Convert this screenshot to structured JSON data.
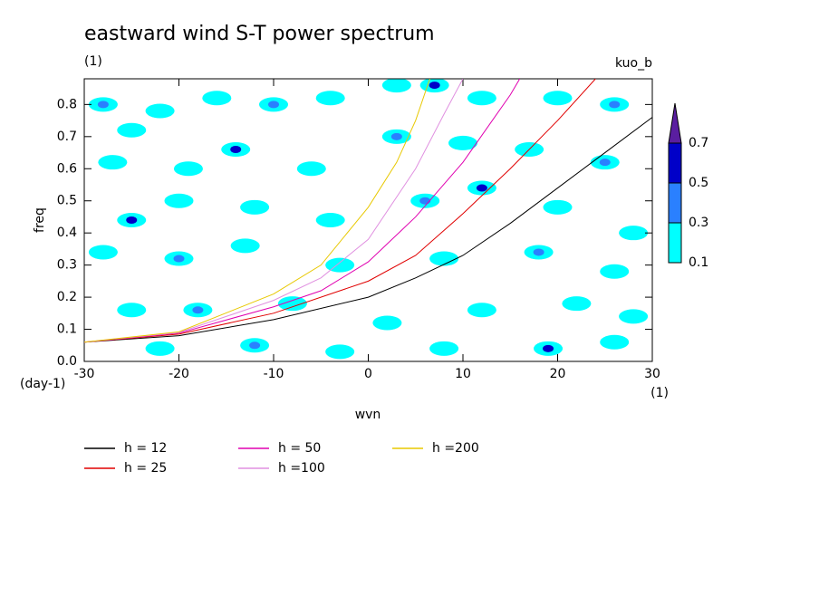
{
  "chart_data": {
    "type": "line",
    "title": "eastward wind S-T power spectrum",
    "subtitle": "(1)",
    "annotation": "kuo_b",
    "x_label": "wvn",
    "x_unit": "(1)",
    "y_label": "freq",
    "y_unit": "(day-1)",
    "xlim": [
      -30,
      30
    ],
    "ylim": [
      0,
      0.88
    ],
    "xticks": [
      -30,
      -20,
      -10,
      0,
      10,
      20,
      30
    ],
    "yticks": [
      {
        "value": 0,
        "label": "0.0"
      },
      0.1,
      0.2,
      0.3,
      0.4,
      0.5,
      0.6,
      0.7,
      0.8
    ],
    "series": [
      {
        "name": "h = 12",
        "color": "#000000",
        "x": [
          -30,
          -20,
          -10,
          0,
          5,
          10,
          15,
          20,
          25,
          30
        ],
        "values": [
          0.06,
          0.08,
          0.13,
          0.2,
          0.26,
          0.33,
          0.43,
          0.54,
          0.65,
          0.76
        ]
      },
      {
        "name": "h = 25",
        "color": "#e00000",
        "x": [
          -30,
          -20,
          -10,
          0,
          5,
          10,
          15,
          20,
          24
        ],
        "values": [
          0.06,
          0.085,
          0.15,
          0.25,
          0.33,
          0.46,
          0.6,
          0.75,
          0.88
        ]
      },
      {
        "name": "h = 50",
        "color": "#e000b0",
        "x": [
          -30,
          -20,
          -10,
          -5,
          0,
          5,
          10,
          15,
          16
        ],
        "values": [
          0.06,
          0.088,
          0.17,
          0.22,
          0.31,
          0.45,
          0.62,
          0.83,
          0.88
        ]
      },
      {
        "name": "h =100",
        "color": "#e090e0",
        "x": [
          -30,
          -20,
          -10,
          -5,
          0,
          5,
          8,
          10
        ],
        "values": [
          0.06,
          0.09,
          0.19,
          0.26,
          0.38,
          0.6,
          0.77,
          0.88
        ]
      },
      {
        "name": "h =200",
        "color": "#e8c800",
        "x": [
          -30,
          -20,
          -10,
          -5,
          0,
          3,
          5,
          6.5
        ],
        "values": [
          0.06,
          0.092,
          0.21,
          0.3,
          0.48,
          0.62,
          0.75,
          0.88
        ]
      }
    ],
    "contour_levels": [
      0.1,
      0.3,
      0.5,
      0.7
    ],
    "contour_colors": [
      "#00ffff",
      "#2a80ff",
      "#0000c8",
      "#5a1ea0"
    ],
    "field": {
      "wvn": [
        -28,
        -25,
        -22,
        -16,
        -10,
        -4,
        3,
        7,
        12,
        20,
        26,
        -27,
        -19,
        -14,
        -6,
        3,
        10,
        17,
        25,
        -25,
        -20,
        -12,
        -4,
        6,
        12,
        20,
        28,
        -28,
        -20,
        -13,
        -3,
        8,
        18,
        26,
        -25,
        -18,
        -8,
        2,
        12,
        22,
        28,
        -22,
        -12,
        -3,
        8,
        19,
        26
      ],
      "freq": [
        0.8,
        0.72,
        0.78,
        0.82,
        0.8,
        0.82,
        0.86,
        0.86,
        0.82,
        0.82,
        0.8,
        0.62,
        0.6,
        0.66,
        0.6,
        0.7,
        0.68,
        0.66,
        0.62,
        0.44,
        0.5,
        0.48,
        0.44,
        0.5,
        0.54,
        0.48,
        0.4,
        0.34,
        0.32,
        0.36,
        0.3,
        0.32,
        0.34,
        0.28,
        0.16,
        0.16,
        0.18,
        0.12,
        0.16,
        0.18,
        0.14,
        0.04,
        0.05,
        0.03,
        0.04,
        0.04,
        0.06
      ],
      "values": [
        0.3,
        0.1,
        0.1,
        0.1,
        0.3,
        0.1,
        0.1,
        0.5,
        0.1,
        0.1,
        0.3,
        0.1,
        0.1,
        0.5,
        0.1,
        0.3,
        0.1,
        0.1,
        0.3,
        0.5,
        0.1,
        0.1,
        0.1,
        0.3,
        0.5,
        0.1,
        0.1,
        0.1,
        0.3,
        0.1,
        0.1,
        0.1,
        0.3,
        0.1,
        0.1,
        0.3,
        0.1,
        0.1,
        0.1,
        0.1,
        0.1,
        0.1,
        0.3,
        0.1,
        0.1,
        0.5,
        0.1
      ]
    }
  }
}
